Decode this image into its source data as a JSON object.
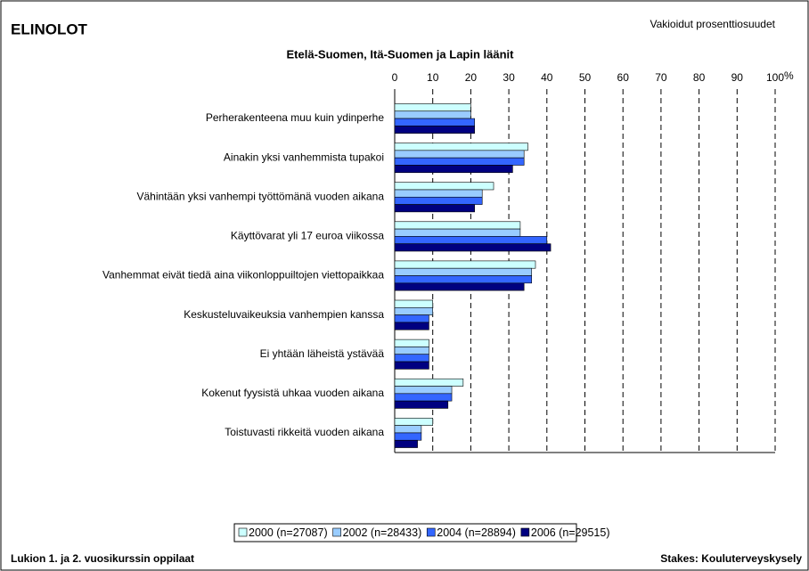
{
  "chart_data": {
    "type": "hbar",
    "header": "ELINOLOT",
    "subtitle": "Vakioidut prosenttiosuudet",
    "title": "Etelä-Suomen, Itä-Suomen ja Lapin läänit",
    "xlabel": "%",
    "footer_left": "Lukion 1. ja 2. vuosikurssin oppilaat",
    "footer_right": "Stakes: Kouluterveyskysely",
    "categories": [
      "Perherakenteena muu kuin ydinperhe",
      "Ainakin yksi vanhemmista tupakoi",
      "Vähintään yksi vanhempi työttömänä vuoden aikana",
      "Käyttövarat yli 17 euroa viikossa",
      "Vanhemmat eivät tiedä aina viikonloppuiltojen viettopaikkaa",
      "Keskusteluvaikeuksia vanhempien kanssa",
      "Ei yhtään läheistä ystävää",
      "Kokenut fyysistä uhkaa vuoden aikana",
      "Toistuvasti rikkeitä vuoden aikana"
    ],
    "series": [
      {
        "name": "2000 (n=27087)",
        "color": "#ccffff",
        "values": [
          20,
          35,
          26,
          33,
          37,
          10,
          9,
          18,
          10
        ]
      },
      {
        "name": "2002 (n=28433)",
        "color": "#99ccff",
        "values": [
          20,
          34,
          23,
          33,
          36,
          10,
          9,
          15,
          7
        ]
      },
      {
        "name": "2004 (n=28894)",
        "color": "#3366ff",
        "values": [
          21,
          34,
          23,
          40,
          36,
          9,
          9,
          15,
          7
        ]
      },
      {
        "name": "2006 (n=29515)",
        "color": "#000080",
        "values": [
          21,
          31,
          21,
          41,
          34,
          9,
          9,
          14,
          6
        ]
      }
    ],
    "xlim": [
      0,
      100
    ],
    "xticks": [
      0,
      10,
      20,
      30,
      40,
      50,
      60,
      70,
      80,
      90,
      100
    ],
    "grid": true
  }
}
